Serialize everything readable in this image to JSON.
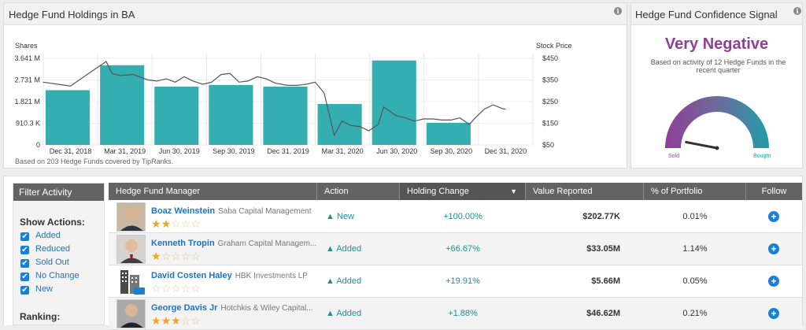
{
  "holdings_panel": {
    "title": "Hedge Fund Holdings in BA",
    "footnote": "Based on 203 Hedge Funds covered by TipRanks."
  },
  "confidence_panel": {
    "title": "Hedge Fund Confidence Signal",
    "signal": "Very Negative",
    "description": "Based on activity of 12 Hedge Funds in the recent quarter",
    "gauge_min_label": "Sold",
    "gauge_max_label": "Bought",
    "gauge_level": 0.06,
    "colors": {
      "signal": "#8e3f96",
      "gauge_start": "#8e3f96",
      "gauge_end": "#1f9ea8"
    }
  },
  "chart_data": {
    "type": "bar",
    "ylabel": "Shares",
    "y2label": "Stock Price",
    "ytick_labels": [
      "3.641 M",
      "2.731 M",
      "1.821 M",
      "910.3 K",
      "0"
    ],
    "y2tick_labels": [
      "$450",
      "$350",
      "$250",
      "$150",
      "$50"
    ],
    "xtick_labels": [
      "Dec 31, 2018",
      "Mar 31, 2019",
      "Jun 30, 2019",
      "Sep 30, 2019",
      "Dec 31, 2019",
      "Mar 31, 2020",
      "Jun 30, 2020",
      "Sep 30, 2020",
      "Dec 31, 2020"
    ],
    "ylim": [
      0,
      3.641
    ],
    "y2lim": [
      50,
      450
    ],
    "categories": [
      "Dec 31, 2018",
      "Mar 31, 2019",
      "Jun 30, 2019",
      "Sep 30, 2019",
      "Dec 31, 2019",
      "Mar 31, 2020",
      "Jun 30, 2020",
      "Sep 30, 2020",
      "Dec 31, 2020"
    ],
    "series": [
      {
        "kind": "bar",
        "axis": "left",
        "color": "#35aeb2",
        "values": [
          2.3,
          3.35,
          2.45,
          2.52,
          2.45,
          1.72,
          3.55,
          0.93,
          null
        ]
      },
      {
        "kind": "line",
        "axis": "right",
        "color": "#555555",
        "points": [
          [
            "2018-11-15",
            340
          ],
          [
            "2018-12-10",
            330
          ],
          [
            "2018-12-31",
            322
          ],
          [
            "2019-01-20",
            360
          ],
          [
            "2019-02-10",
            400
          ],
          [
            "2019-03-01",
            435
          ],
          [
            "2019-03-11",
            380
          ],
          [
            "2019-03-25",
            370
          ],
          [
            "2019-04-15",
            375
          ],
          [
            "2019-05-10",
            350
          ],
          [
            "2019-05-25",
            345
          ],
          [
            "2019-06-10",
            355
          ],
          [
            "2019-06-25",
            340
          ],
          [
            "2019-07-10",
            365
          ],
          [
            "2019-07-25",
            345
          ],
          [
            "2019-08-10",
            330
          ],
          [
            "2019-08-25",
            340
          ],
          [
            "2019-09-10",
            375
          ],
          [
            "2019-09-25",
            380
          ],
          [
            "2019-10-10",
            340
          ],
          [
            "2019-10-25",
            345
          ],
          [
            "2019-11-10",
            365
          ],
          [
            "2019-11-25",
            355
          ],
          [
            "2019-12-10",
            335
          ],
          [
            "2019-12-31",
            325
          ],
          [
            "2020-01-15",
            325
          ],
          [
            "2020-01-31",
            330
          ],
          [
            "2020-02-15",
            340
          ],
          [
            "2020-03-01",
            290
          ],
          [
            "2020-03-18",
            95
          ],
          [
            "2020-03-31",
            160
          ],
          [
            "2020-04-15",
            140
          ],
          [
            "2020-04-30",
            135
          ],
          [
            "2020-05-15",
            115
          ],
          [
            "2020-05-31",
            145
          ],
          [
            "2020-06-09",
            225
          ],
          [
            "2020-06-30",
            185
          ],
          [
            "2020-07-15",
            175
          ],
          [
            "2020-07-31",
            160
          ],
          [
            "2020-08-15",
            170
          ],
          [
            "2020-08-31",
            170
          ],
          [
            "2020-09-15",
            165
          ],
          [
            "2020-09-30",
            165
          ],
          [
            "2020-10-15",
            175
          ],
          [
            "2020-10-31",
            145
          ],
          [
            "2020-11-10",
            175
          ],
          [
            "2020-11-25",
            215
          ],
          [
            "2020-12-10",
            235
          ],
          [
            "2020-12-25",
            218
          ],
          [
            "2020-12-31",
            215
          ]
        ]
      }
    ],
    "grid": true,
    "legend": "none"
  },
  "filter": {
    "title": "Filter Activity",
    "show_actions_label": "Show Actions:",
    "options": [
      "Added",
      "Reduced",
      "Sold Out",
      "No Change",
      "New"
    ],
    "ranking_label": "Ranking:"
  },
  "table": {
    "headers": [
      "Hedge Fund Manager",
      "Action",
      "Holding Change",
      "Value Reported",
      "% of Portfolio",
      "Follow"
    ],
    "sort_indicator": "▼",
    "rows": [
      {
        "manager": "Boaz Weinstein",
        "firm": "Saba Capital Management",
        "stars": 2,
        "action": "▲ New",
        "change": "+100.00%",
        "value": "$202.77K",
        "portfolio": "0.01%"
      },
      {
        "manager": "Kenneth Tropin",
        "firm": "Graham Capital Managem...",
        "stars": 1,
        "action": "▲ Added",
        "change": "+66.67%",
        "value": "$33.05M",
        "portfolio": "1.14%"
      },
      {
        "manager": "David Costen Haley",
        "firm": "HBK Investments LP",
        "stars": 0,
        "action": "▲ Added",
        "change": "+19.91%",
        "value": "$5.66M",
        "portfolio": "0.05%"
      },
      {
        "manager": "George Davis Jr",
        "firm": "Hotchkis & Wiley Capital...",
        "stars": 3,
        "action": "▲ Added",
        "change": "+1.88%",
        "value": "$46.62M",
        "portfolio": "0.21%"
      }
    ]
  }
}
